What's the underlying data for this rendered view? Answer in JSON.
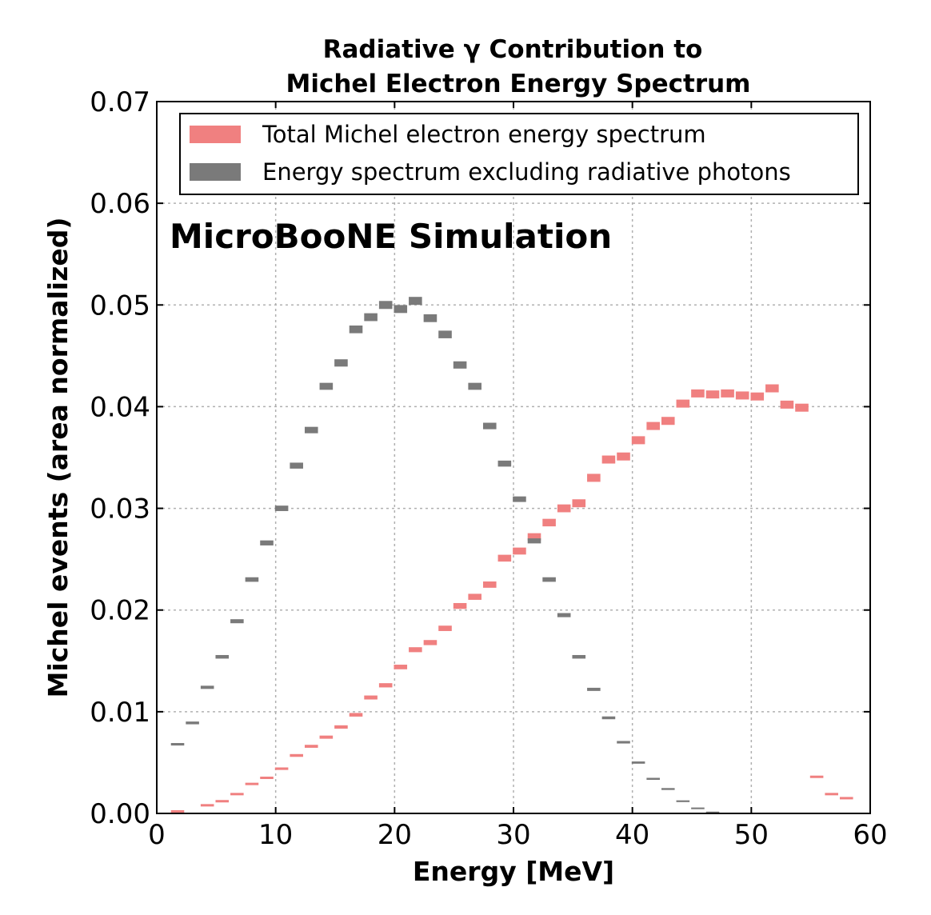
{
  "chart_data": {
    "type": "bar",
    "title_line1": "Radiative γ Contribution to",
    "title_line2": "Michel Electron Energy Spectrum",
    "xlabel": "Energy [MeV]",
    "ylabel": "Michel events (area normalized)",
    "annotation": "MicroBooNE Simulation",
    "xlim": [
      0,
      60
    ],
    "ylim": [
      0,
      0.07
    ],
    "xticks": [
      "0",
      "10",
      "20",
      "30",
      "40",
      "50",
      "60"
    ],
    "yticks": [
      "0.00",
      "0.01",
      "0.02",
      "0.03",
      "0.04",
      "0.05",
      "0.06",
      "0.07"
    ],
    "grid": true,
    "legend_position": "top",
    "series": [
      {
        "name": "Total Michel electron energy spectrum",
        "color": "#f08080",
        "x": [
          1.75,
          4.25,
          5.5,
          6.75,
          8.0,
          9.25,
          10.5,
          11.75,
          13.0,
          14.25,
          15.5,
          16.75,
          18.0,
          19.25,
          20.5,
          21.75,
          23.0,
          24.25,
          25.5,
          26.75,
          28.0,
          29.25,
          30.5,
          31.75,
          33.0,
          34.25,
          35.5,
          36.75,
          38.0,
          39.25,
          40.5,
          41.75,
          43.0,
          44.25,
          45.5,
          46.75,
          48.0,
          49.25,
          50.5,
          51.75,
          53.0,
          54.25,
          55.5,
          56.75,
          58.0
        ],
        "values": [
          0.0002,
          0.0008,
          0.0012,
          0.0019,
          0.0029,
          0.0035,
          0.0044,
          0.0057,
          0.0066,
          0.0075,
          0.0085,
          0.0097,
          0.0114,
          0.0126,
          0.0144,
          0.0161,
          0.0168,
          0.0182,
          0.0204,
          0.0213,
          0.0225,
          0.0251,
          0.0258,
          0.0272,
          0.0286,
          0.03,
          0.0305,
          0.033,
          0.0348,
          0.0351,
          0.0367,
          0.0381,
          0.0386,
          0.0403,
          0.0413,
          0.0412,
          0.0413,
          0.0411,
          0.041,
          0.0418,
          0.0402,
          0.0399,
          0.0036,
          0.0019,
          0.0015
        ]
      },
      {
        "name": "Energy spectrum excluding radiative photons",
        "color": "#7a7a7a",
        "x": [
          1.75,
          3.0,
          4.25,
          5.5,
          6.75,
          8.0,
          9.25,
          10.5,
          11.75,
          13.0,
          14.25,
          15.5,
          16.75,
          18.0,
          19.25,
          20.5,
          21.75,
          23.0,
          24.25,
          25.5,
          26.75,
          28.0,
          29.25,
          30.5,
          31.75,
          33.0,
          34.25,
          35.5,
          36.75,
          38.0,
          39.25,
          40.5,
          41.75,
          43.0,
          44.25,
          45.5,
          46.75
        ],
        "values": [
          0.0068,
          0.0089,
          0.0124,
          0.0154,
          0.0189,
          0.023,
          0.0266,
          0.03,
          0.0342,
          0.0377,
          0.042,
          0.0443,
          0.0476,
          0.0488,
          0.05,
          0.0496,
          0.0504,
          0.0487,
          0.0471,
          0.0441,
          0.042,
          0.0381,
          0.0344,
          0.0309,
          0.0268,
          0.023,
          0.0195,
          0.0154,
          0.0122,
          0.0094,
          0.007,
          0.005,
          0.0034,
          0.0024,
          0.0012,
          0.0005,
          0.0001
        ]
      }
    ]
  }
}
